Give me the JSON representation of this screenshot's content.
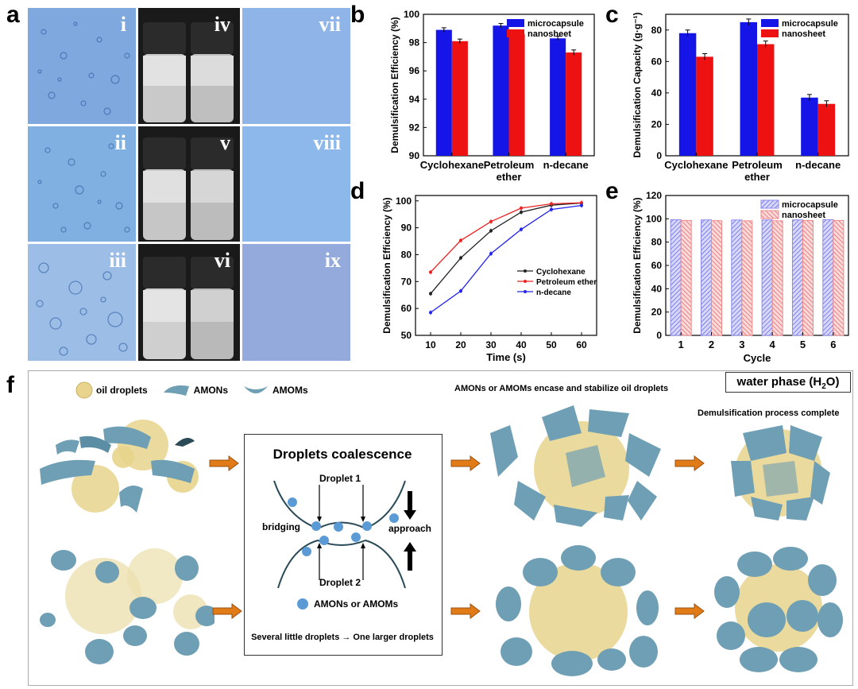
{
  "panel_labels": {
    "a": "a",
    "b": "b",
    "c": "c",
    "d": "d",
    "e": "e",
    "f": "f"
  },
  "micro_labels": [
    "i",
    "ii",
    "iii",
    "iv",
    "v",
    "vi",
    "vii",
    "viii",
    "ix"
  ],
  "chart_data": [
    {
      "id": "b",
      "type": "bar",
      "categories": [
        "Cyclohexane",
        "Petroleum ether",
        "n-decane"
      ],
      "category_lines": [
        [
          "Cyclohexane"
        ],
        [
          "Petroleum",
          "ether"
        ],
        [
          "n-decane"
        ]
      ],
      "series": [
        {
          "name": "microcapsule",
          "color": "#1515e8",
          "values": [
            98.9,
            99.2,
            98.3
          ],
          "err": [
            0.15,
            0.15,
            0.15
          ]
        },
        {
          "name": "nanosheet",
          "color": "#ee1111",
          "values": [
            98.1,
            98.6,
            97.3
          ],
          "err": [
            0.15,
            0.15,
            0.18
          ]
        }
      ],
      "ylabel": "Demulsification Efficiency (%)",
      "ylim": [
        90,
        100
      ],
      "yticks": [
        90,
        92,
        94,
        96,
        98,
        100
      ],
      "legend": "top-right"
    },
    {
      "id": "c",
      "type": "bar",
      "categories": [
        "Cyclohexane",
        "Petroleum ether",
        "n-decane"
      ],
      "category_lines": [
        [
          "Cyclohexane"
        ],
        [
          "Petroleum",
          "ether"
        ],
        [
          "n-decane"
        ]
      ],
      "series": [
        {
          "name": "microcapsule",
          "color": "#1515e8",
          "values": [
            78,
            85,
            37
          ],
          "err": [
            2,
            2,
            2
          ]
        },
        {
          "name": "nanosheet",
          "color": "#ee1111",
          "values": [
            63,
            71,
            33
          ],
          "err": [
            2,
            2,
            2
          ]
        }
      ],
      "ylabel": "Demulsification Capacity (g·g⁻¹)",
      "ylim": [
        0,
        90
      ],
      "yticks": [
        0,
        20,
        40,
        60,
        80
      ],
      "legend": "top-right"
    },
    {
      "id": "d",
      "type": "line",
      "x": [
        10,
        20,
        30,
        40,
        50,
        60
      ],
      "series": [
        {
          "name": "Cyclohexane",
          "color": "#222222",
          "values": [
            65.5,
            78.8,
            88.9,
            95.8,
            98.4,
            99.2
          ]
        },
        {
          "name": "Petroleum ether",
          "color": "#ee2222",
          "values": [
            73.5,
            85.3,
            92.3,
            97.3,
            98.9,
            99.3
          ]
        },
        {
          "name": "n-decane",
          "color": "#2222ee",
          "values": [
            58.5,
            66.5,
            80.4,
            89.4,
            96.8,
            98.3
          ]
        }
      ],
      "xlabel": "Time (s)",
      "ylabel": "Demulsification Efficiency (%)",
      "xlim": [
        5,
        65
      ],
      "ylim": [
        50,
        102
      ],
      "xticks": [
        10,
        20,
        30,
        40,
        50,
        60
      ],
      "yticks": [
        50,
        60,
        70,
        80,
        90,
        100
      ],
      "legend": "right"
    },
    {
      "id": "e",
      "type": "bar",
      "categories": [
        "1",
        "2",
        "3",
        "4",
        "5",
        "6"
      ],
      "series": [
        {
          "name": "microcapsule",
          "color": "#8a8aee",
          "values": [
            99.2,
            99.1,
            99,
            99,
            99.1,
            99.2
          ]
        },
        {
          "name": "nanosheet",
          "color": "#ee8a8a",
          "values": [
            98.6,
            98.4,
            98.3,
            98.3,
            98.5,
            98.6
          ]
        }
      ],
      "xlabel": "Cycle",
      "ylabel": "Demulsification Efficiency (%)",
      "ylim": [
        0,
        120
      ],
      "yticks": [
        0,
        20,
        40,
        60,
        80,
        100,
        120
      ],
      "legend": "top-right"
    }
  ],
  "schematic": {
    "legend": [
      "oil droplets",
      "AMONs",
      "AMOMs"
    ],
    "water_phase": "water phase (H",
    "water_sub": "2",
    "water_tail": "O)",
    "coalescence_title": "Droplets coalescence",
    "droplet1": "Droplet 1",
    "droplet2": "Droplet 2",
    "bridging": "bridging",
    "approach": "approach",
    "agent_legend": "AMONs or AMOMs",
    "summary": "Several little droplets → One larger droplets",
    "encase": "AMONs or AMOMs encase and stabilize oil droplets",
    "complete": "Demulsification process complete"
  },
  "colors": {
    "micro_bg": "#86aee0",
    "sheet": "#6f9fb4",
    "oil": "#e8d48c",
    "arrow": "#e07b18",
    "agent": "#5b9bd5"
  }
}
